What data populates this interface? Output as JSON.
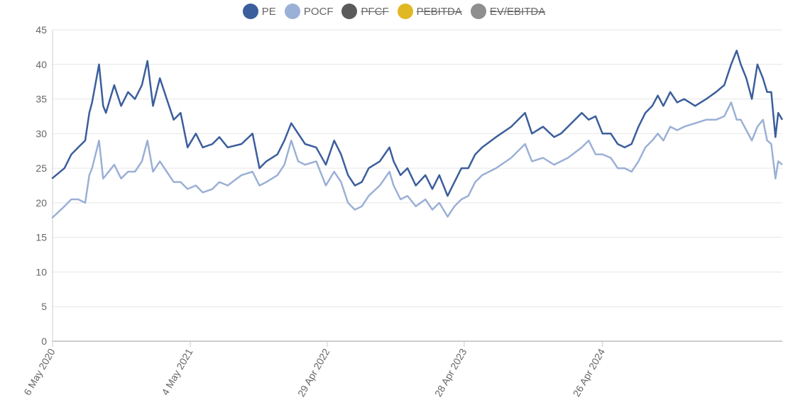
{
  "legend": [
    {
      "label": "PE",
      "color": "#3b5e9c",
      "visible": true
    },
    {
      "label": "POCF",
      "color": "#9bb0d6",
      "visible": true
    },
    {
      "label": "PFCF",
      "color": "#5a5a5a",
      "visible": false
    },
    {
      "label": "PEBITDA",
      "color": "#dfb824",
      "visible": false
    },
    {
      "label": "EV/EBITDA",
      "color": "#8e8e8e",
      "visible": false
    }
  ],
  "chart_data": {
    "type": "line",
    "title": "",
    "xlabel": "",
    "ylabel": "",
    "x_unit": "decimal year",
    "xlim": [
      2020.344,
      2025.62
    ],
    "ylim": [
      0,
      45
    ],
    "yticks": [
      0,
      5,
      10,
      15,
      20,
      25,
      30,
      35,
      40,
      45
    ],
    "xticks": [
      {
        "value": 2020.344,
        "label": "6 May 2020"
      },
      {
        "value": 2021.34,
        "label": "4 May 2021"
      },
      {
        "value": 2022.33,
        "label": "29 Apr 2022"
      },
      {
        "value": 2023.32,
        "label": "28 Apr 2023"
      },
      {
        "value": 2024.32,
        "label": "26 Apr 2024"
      }
    ],
    "grid": true,
    "legend_position": "top-center",
    "x": [
      2020.34,
      2020.43,
      2020.48,
      2020.53,
      2020.58,
      2020.61,
      2020.63,
      2020.68,
      2020.71,
      2020.73,
      2020.79,
      2020.84,
      2020.89,
      2020.94,
      2020.99,
      2021.03,
      2021.07,
      2021.12,
      2021.17,
      2021.22,
      2021.27,
      2021.32,
      2021.38,
      2021.43,
      2021.5,
      2021.55,
      2021.61,
      2021.71,
      2021.79,
      2021.84,
      2021.89,
      2021.97,
      2022.02,
      2022.07,
      2022.12,
      2022.17,
      2022.25,
      2022.32,
      2022.38,
      2022.43,
      2022.48,
      2022.53,
      2022.58,
      2022.63,
      2022.71,
      2022.78,
      2022.81,
      2022.86,
      2022.91,
      2022.97,
      2023.04,
      2023.09,
      2023.14,
      2023.2,
      2023.25,
      2023.3,
      2023.35,
      2023.4,
      2023.45,
      2023.55,
      2023.66,
      2023.76,
      2023.81,
      2023.89,
      2023.97,
      2024.02,
      2024.07,
      2024.17,
      2024.22,
      2024.27,
      2024.32,
      2024.38,
      2024.43,
      2024.48,
      2024.53,
      2024.58,
      2024.63,
      2024.68,
      2024.72,
      2024.76,
      2024.81,
      2024.86,
      2024.91,
      2024.99,
      2025.07,
      2025.14,
      2025.2,
      2025.25,
      2025.29,
      2025.32,
      2025.36,
      2025.4,
      2025.44,
      2025.48,
      2025.51,
      2025.54,
      2025.57,
      2025.59,
      2025.62
    ],
    "series": [
      {
        "name": "PE",
        "values": [
          23.5,
          25,
          27,
          28,
          29,
          33,
          34.5,
          40,
          34,
          33,
          37,
          34,
          36,
          35,
          37,
          40.5,
          34,
          38,
          35,
          32,
          33,
          28,
          30,
          28,
          28.5,
          29.5,
          28,
          28.5,
          30,
          25,
          26,
          27,
          29,
          31.5,
          30,
          28.5,
          28,
          25.5,
          29,
          27,
          24,
          22.5,
          23,
          25,
          26,
          28,
          26,
          24,
          25,
          22.5,
          24,
          22,
          24,
          21,
          23,
          25,
          25,
          27,
          28,
          29.5,
          31,
          33,
          30,
          31,
          29.5,
          30,
          31,
          33,
          32,
          32.5,
          30,
          30,
          28.5,
          28,
          28.5,
          31,
          33,
          34,
          35.5,
          34,
          36,
          34.5,
          35,
          34,
          35,
          36,
          37,
          40,
          42,
          40,
          38,
          35,
          40,
          38,
          36,
          36,
          29.5,
          33,
          32
        ]
      },
      {
        "name": "POCF",
        "values": [
          17.8,
          19.5,
          20.5,
          20.5,
          20,
          24,
          25,
          29,
          23.5,
          24,
          25.5,
          23.5,
          24.5,
          24.5,
          26,
          29,
          24.5,
          26,
          24.5,
          23,
          23,
          22,
          22.5,
          21.5,
          22,
          23,
          22.5,
          24,
          24.5,
          22.5,
          23,
          24,
          25.5,
          29,
          26,
          25.5,
          26,
          22.5,
          24.5,
          23,
          20,
          19,
          19.5,
          21,
          22.5,
          24.5,
          22.5,
          20.5,
          21,
          19.5,
          20.5,
          19,
          20,
          18,
          19.5,
          20.5,
          21,
          23,
          24,
          25,
          26.5,
          28.5,
          26,
          26.5,
          25.5,
          26,
          26.5,
          28,
          29,
          27,
          27,
          26.5,
          25,
          25,
          24.5,
          26,
          28,
          29,
          30,
          29,
          31,
          30.5,
          31,
          31.5,
          32,
          32,
          32.5,
          34.5,
          32,
          32,
          30.5,
          29,
          31,
          32,
          29,
          28.5,
          23.5,
          26,
          25.5
        ]
      }
    ]
  }
}
